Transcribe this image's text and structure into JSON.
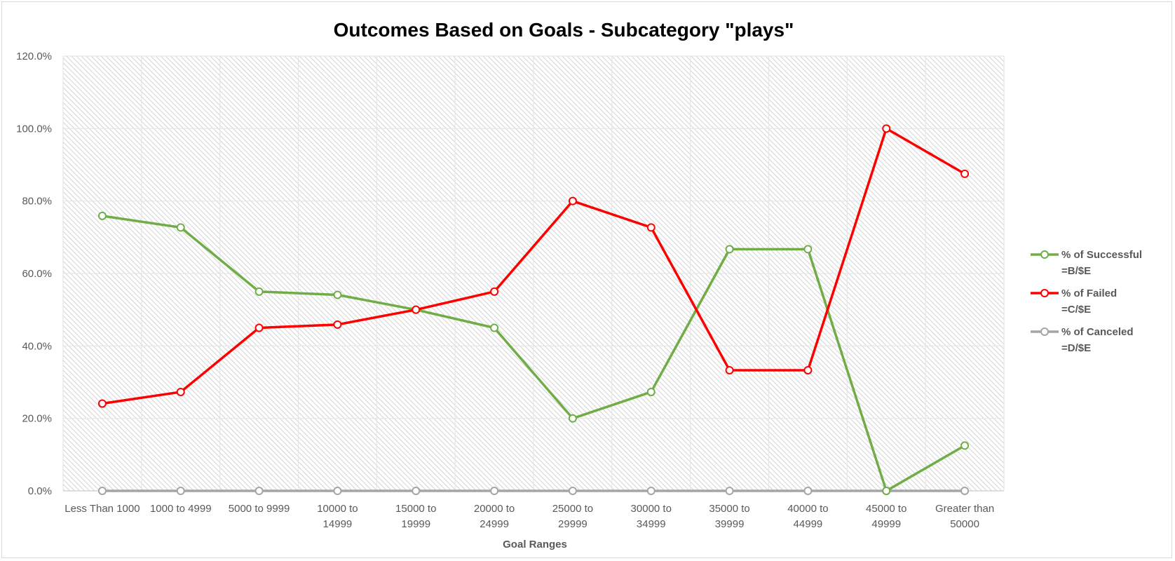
{
  "chart_data": {
    "type": "line",
    "title": "Outcomes Based on Goals - Subcategory \"plays\"",
    "xlabel": "Goal Ranges",
    "ylabel": "",
    "ylim": [
      0,
      120
    ],
    "y_tick_values": [
      0,
      20,
      40,
      60,
      80,
      100,
      120
    ],
    "y_tick_labels": [
      "0.0%",
      "20.0%",
      "40.0%",
      "60.0%",
      "80.0%",
      "100.0%",
      "120.0%"
    ],
    "grid": true,
    "legend_position": "right",
    "categories": [
      [
        "Less Than 1000"
      ],
      [
        "1000 to 4999"
      ],
      [
        "5000 to 9999"
      ],
      [
        "10000 to",
        "14999"
      ],
      [
        "15000 to",
        "19999"
      ],
      [
        "20000 to",
        "24999"
      ],
      [
        "25000 to",
        "29999"
      ],
      [
        "30000 to",
        "34999"
      ],
      [
        "35000 to",
        "39999"
      ],
      [
        "40000 to",
        "44999"
      ],
      [
        "45000 to",
        "49999"
      ],
      [
        "Greater than",
        "50000"
      ]
    ],
    "series": [
      {
        "name": "% of Successful",
        "name_sub": "=B/$E",
        "color": "#70ad47",
        "values": [
          75.9,
          72.7,
          55.0,
          54.1,
          50.0,
          45.0,
          20.0,
          27.3,
          66.7,
          66.7,
          0.0,
          12.5
        ]
      },
      {
        "name": "% of Failed",
        "name_sub": "=C/$E",
        "color": "#ff0000",
        "values": [
          24.1,
          27.3,
          45.0,
          45.9,
          50.0,
          55.0,
          80.0,
          72.7,
          33.3,
          33.3,
          100.0,
          87.5
        ]
      },
      {
        "name": "% of Canceled",
        "name_sub": "=D/$E",
        "color": "#a5a5a5",
        "values": [
          0,
          0,
          0,
          0,
          0,
          0,
          0,
          0,
          0,
          0,
          0,
          0
        ]
      }
    ]
  }
}
